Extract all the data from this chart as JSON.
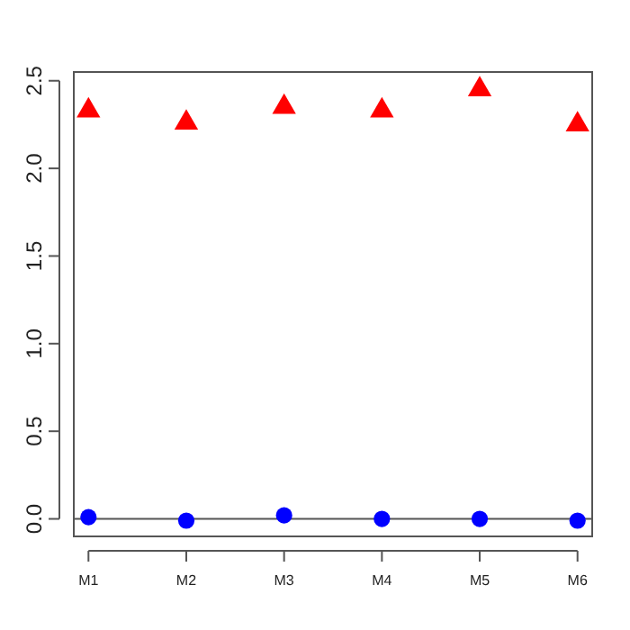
{
  "chart_data": {
    "type": "scatter",
    "categories": [
      "M1",
      "M2",
      "M3",
      "M4",
      "M5",
      "M6"
    ],
    "series": [
      {
        "color": "#ff0000",
        "marker": "triangle",
        "values": [
          2.33,
          2.26,
          2.35,
          2.33,
          2.45,
          2.25
        ]
      },
      {
        "color": "#0000ff",
        "marker": "circle",
        "values": [
          0.01,
          -0.01,
          0.02,
          0,
          0,
          -0.01
        ]
      }
    ],
    "ylim": [
      -0.1,
      2.55
    ],
    "yticks": [
      {
        "value": 0,
        "label": "0.0"
      },
      {
        "value": 0.5,
        "label": "0.5"
      },
      {
        "value": 1,
        "label": "1.0"
      },
      {
        "value": 1.5,
        "label": "1.5"
      },
      {
        "value": 2,
        "label": "2.0"
      },
      {
        "value": 2.5,
        "label": "2.5"
      }
    ],
    "ref_lines": [
      {
        "axis": "y",
        "value": 0,
        "color": "#555555"
      }
    ],
    "grid": false
  }
}
